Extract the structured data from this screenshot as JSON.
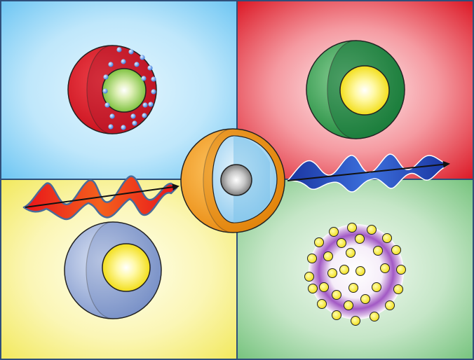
{
  "colors": {
    "frame": "#2f4f7a",
    "quadrant_blue": [
      "#7fcdf5",
      "#d6f1fd"
    ],
    "quadrant_red": [
      "#e01e2a",
      "#fde3e6"
    ],
    "quadrant_yellow": [
      "#f5ee72",
      "#fefde6"
    ],
    "quadrant_green": [
      "#82c98a",
      "#eef8ef"
    ],
    "red_wave": "#e2231a",
    "blue_wave": "#1f3fa8",
    "arrow": "#111111",
    "gold_shell": "#f2a020",
    "gold_dot": "#f5ea34",
    "purple_halo": "#8e44ad"
  },
  "panels": [
    {
      "id": "blue",
      "particle": "red-shell-with-blue-dots-green-core"
    },
    {
      "id": "red",
      "particle": "green-shell-with-yellow-core"
    },
    {
      "id": "yellow",
      "particle": "blue-grey-shell-with-yellow-core"
    },
    {
      "id": "green",
      "particle": "purple-halo-with-yellow-dots"
    }
  ],
  "center_particle": "orange-light-blue-shell-with-grey-core",
  "waves": [
    {
      "id": "red-wave-arrow",
      "direction": "to-center"
    },
    {
      "id": "blue-wave-arrow",
      "direction": "from-center"
    }
  ]
}
